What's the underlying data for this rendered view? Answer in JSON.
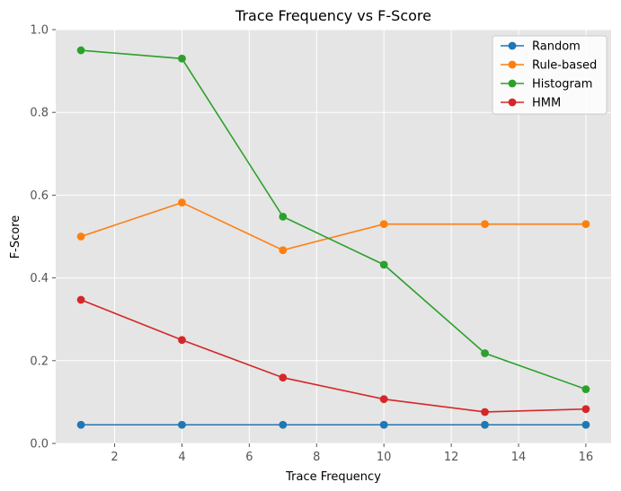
{
  "chart_data": {
    "type": "line",
    "title": "Trace Frequency vs F-Score",
    "xlabel": "Trace Frequency",
    "ylabel": "F-Score",
    "xlim": [
      0.25,
      16.75
    ],
    "ylim": [
      0,
      1.0
    ],
    "x": [
      1,
      4,
      7,
      10,
      13,
      16
    ],
    "xticks": [
      2,
      4,
      6,
      8,
      10,
      12,
      14,
      16
    ],
    "yticks": [
      0.0,
      0.2,
      0.4,
      0.6,
      0.8,
      1.0
    ],
    "grid": true,
    "legend_position": "top-right",
    "series": [
      {
        "name": "Random",
        "color": "#1f77b4",
        "values": [
          0.045,
          0.045,
          0.045,
          0.045,
          0.045,
          0.045
        ]
      },
      {
        "name": "Rule-based",
        "color": "#ff7f0e",
        "values": [
          0.5,
          0.582,
          0.467,
          0.53,
          0.53,
          0.53
        ]
      },
      {
        "name": "Histogram",
        "color": "#2ca02c",
        "values": [
          0.95,
          0.93,
          0.548,
          0.432,
          0.218,
          0.131
        ]
      },
      {
        "name": "HMM",
        "color": "#d62728",
        "values": [
          0.347,
          0.25,
          0.159,
          0.107,
          0.076,
          0.083
        ]
      }
    ]
  }
}
